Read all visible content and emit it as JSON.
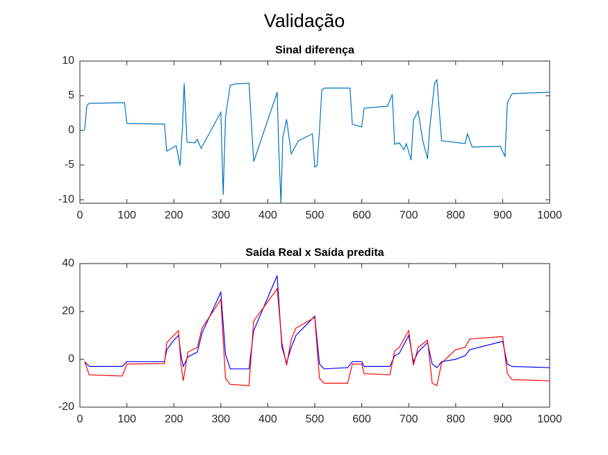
{
  "title": "Validação",
  "chart_data": [
    {
      "type": "line",
      "title": "Sinal diferença",
      "x": [
        10,
        15,
        20,
        95,
        100,
        180,
        185,
        205,
        213,
        218,
        222,
        228,
        245,
        250,
        258,
        295,
        300,
        305,
        310,
        320,
        330,
        360,
        370,
        420,
        423,
        428,
        432,
        440,
        450,
        465,
        495,
        500,
        505,
        510,
        515,
        520,
        575,
        580,
        600,
        605,
        655,
        665,
        670,
        680,
        690,
        695,
        705,
        710,
        720,
        730,
        740,
        745,
        755,
        760,
        770,
        820,
        825,
        835,
        895,
        905,
        910,
        920,
        1000
      ],
      "series": [
        {
          "color": "#0072bd",
          "values": [
            0,
            3.6,
            3.9,
            4.0,
            1.0,
            0.9,
            -3,
            -2.2,
            -5.1,
            0,
            6.8,
            -1.7,
            -1.8,
            -1.3,
            -2.6,
            2.0,
            2.6,
            -9.3,
            2,
            6.5,
            6.7,
            6.8,
            -4.5,
            5.5,
            -2,
            -10.5,
            -1,
            1.6,
            -3.4,
            -1.5,
            -0.5,
            -5.3,
            -5,
            0,
            5.8,
            6.1,
            6.1,
            0.9,
            0.5,
            3.2,
            3.5,
            5.2,
            -2,
            -1.8,
            -2.8,
            -1.9,
            -4.3,
            1.5,
            2.8,
            -1.5,
            -4.1,
            0.5,
            6.8,
            7.3,
            -1.5,
            -1.9,
            -0.5,
            -2.4,
            -2.3,
            -3.8,
            4,
            5.3,
            5.5
          ]
        }
      ],
      "xlim": [
        0,
        1000
      ],
      "xticks": [
        0,
        100,
        200,
        300,
        400,
        500,
        600,
        700,
        800,
        900,
        1000
      ],
      "ylim": [
        -10.5,
        10
      ],
      "yticks": [
        -10,
        -5,
        0,
        5,
        10
      ]
    },
    {
      "type": "line",
      "title": "Saída Real x Saída predita",
      "x": [
        10,
        20,
        90,
        100,
        180,
        185,
        200,
        210,
        215,
        220,
        230,
        250,
        260,
        300,
        310,
        320,
        360,
        370,
        420,
        430,
        440,
        450,
        460,
        500,
        510,
        520,
        570,
        580,
        600,
        605,
        660,
        670,
        680,
        700,
        710,
        720,
        740,
        750,
        760,
        770,
        800,
        820,
        830,
        900,
        910,
        920,
        1000
      ],
      "series": [
        {
          "color": "#0000ff",
          "values": [
            -1,
            -3,
            -3,
            -1,
            -1,
            4,
            8,
            10,
            2,
            -3,
            1,
            3,
            11,
            28,
            2,
            -4,
            -4,
            12,
            35,
            5,
            -1.5,
            5,
            10,
            18,
            -2,
            -4,
            -3.5,
            -1,
            -1,
            -3,
            -3,
            1.5,
            2.5,
            10,
            -1,
            3,
            7,
            -2,
            -3.5,
            -1,
            0,
            1.5,
            4,
            7.5,
            -2,
            -3,
            -3.5
          ]
        },
        {
          "color": "#ff0000",
          "values": [
            -1,
            -6.5,
            -7,
            -2,
            -1.8,
            7,
            10,
            12,
            -2,
            -9,
            3,
            5,
            13,
            25,
            -8,
            -10.5,
            -11,
            16,
            29.5,
            7,
            -2.5,
            8.5,
            13,
            17.5,
            -8,
            -10,
            -10,
            -2,
            -2,
            -6,
            -6.5,
            3.5,
            5,
            12,
            -2.5,
            5,
            8,
            -10,
            -11,
            -1.5,
            4,
            5,
            8.5,
            9.5,
            -6,
            -8.5,
            -9
          ]
        }
      ],
      "xlim": [
        0,
        1000
      ],
      "xticks": [
        0,
        100,
        200,
        300,
        400,
        500,
        600,
        700,
        800,
        900,
        1000
      ],
      "ylim": [
        -20,
        40
      ],
      "yticks": [
        -20,
        0,
        20,
        40
      ]
    }
  ]
}
